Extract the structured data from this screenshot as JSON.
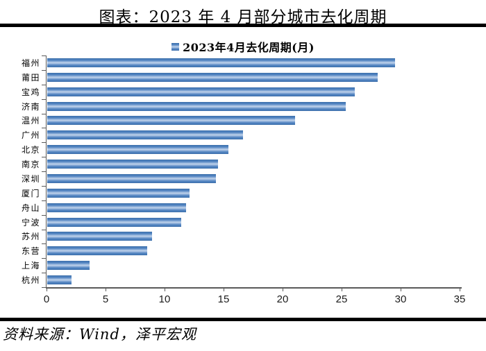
{
  "title": "图表：2023 年 4 月部分城市去化周期",
  "legend": {
    "label": "2023年4月去化周期(月)"
  },
  "source": "资料来源：Wind，泽平宏观",
  "colors": {
    "bar_edge": "#30639c",
    "bar_mid": "#4b7ebc",
    "bar_inner": "#8fb0da",
    "bar_highlight": "#c2d4eb",
    "axis": "#595959",
    "rule": "#000000",
    "text": "#000000"
  },
  "chart_data": {
    "type": "bar",
    "orientation": "horizontal",
    "title": "图表：2023 年 4 月部分城市去化周期",
    "series_name": "2023年4月去化周期(月)",
    "categories": [
      "福州",
      "莆田",
      "宝鸡",
      "济南",
      "温州",
      "广州",
      "北京",
      "南京",
      "深圳",
      "厦门",
      "舟山",
      "宁波",
      "苏州",
      "东营",
      "上海",
      "杭州"
    ],
    "values": [
      29.5,
      28.0,
      26.1,
      25.3,
      21.0,
      16.6,
      15.4,
      14.5,
      14.3,
      12.1,
      11.8,
      11.4,
      8.9,
      8.5,
      3.6,
      2.1
    ],
    "xlabel": "",
    "ylabel": "",
    "xlim": [
      0,
      35
    ],
    "x_ticks": [
      0,
      5,
      10,
      15,
      20,
      25,
      30,
      35
    ],
    "grid": false,
    "legend_position": "top-center",
    "unit": "月"
  }
}
